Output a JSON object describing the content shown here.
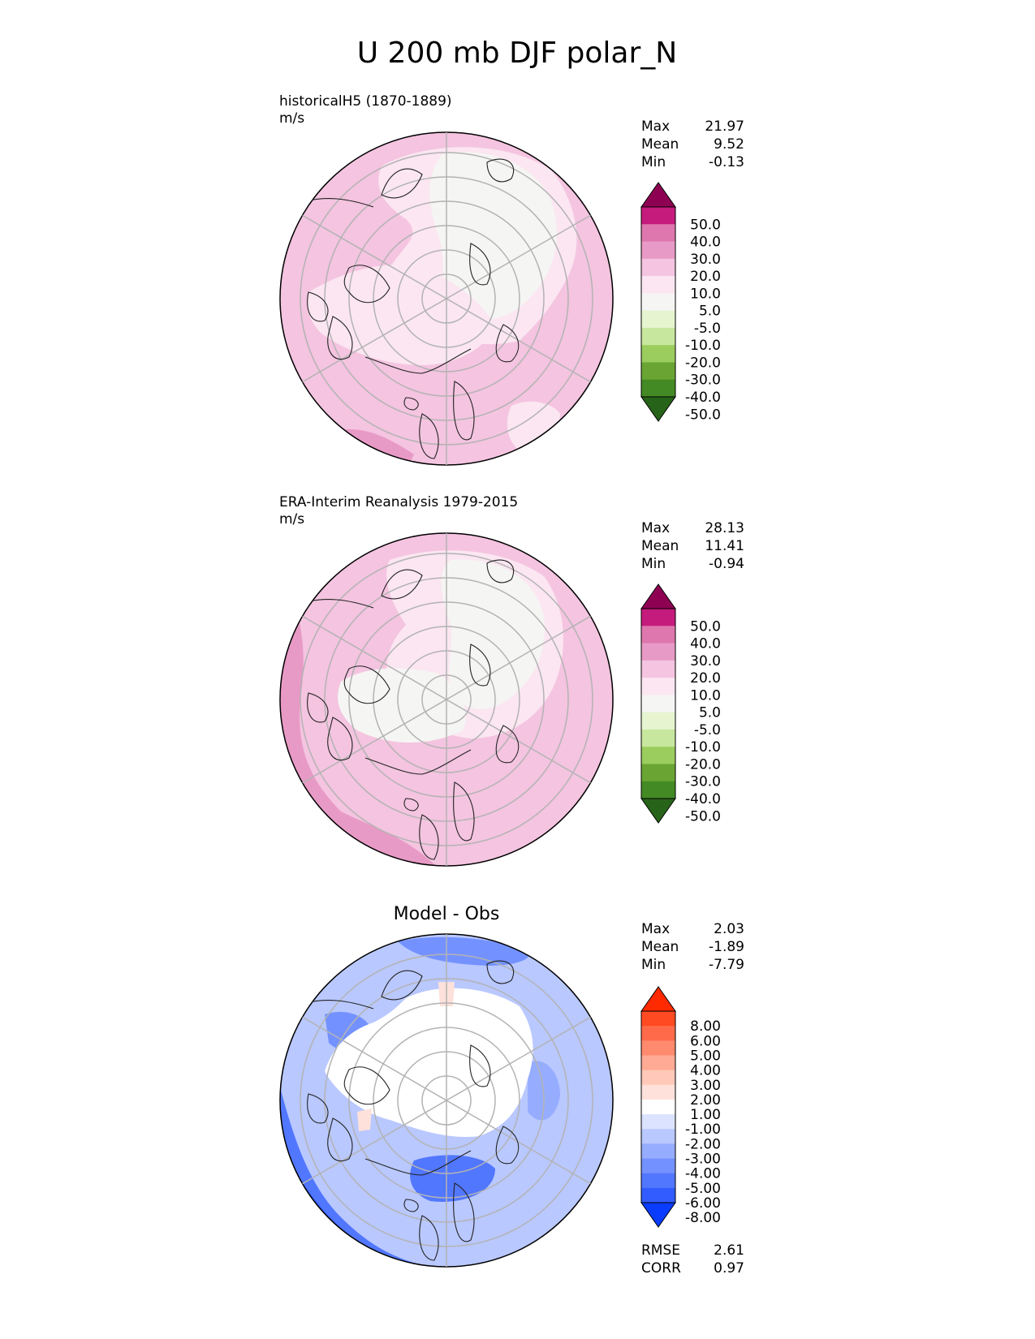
{
  "figure_title": "U 200 mb DJF polar_N",
  "panels": [
    {
      "title": "historicalH5 (1870-1889)",
      "units": "m/s",
      "stats": {
        "Max": "21.97",
        "Mean": "9.52",
        "Min": "-0.13"
      }
    },
    {
      "title": "ERA-Interim Reanalysis 1979-2015",
      "units": "m/s",
      "stats": {
        "Max": "28.13",
        "Mean": "11.41",
        "Min": "-0.94"
      }
    },
    {
      "title": "Model - Obs",
      "units": "",
      "stats": {
        "Max": "2.03",
        "Mean": "-1.89",
        "Min": "-7.79"
      },
      "metrics": {
        "RMSE": "2.61",
        "CORR": "0.97"
      }
    }
  ],
  "colorbars": {
    "field": {
      "labels": [
        "50.0",
        "40.0",
        "30.0",
        "20.0",
        "10.0",
        "5.0",
        "-5.0",
        "-10.0",
        "-20.0",
        "-30.0",
        "-40.0",
        "-50.0"
      ],
      "colors": [
        "#8e0152",
        "#c51b7d",
        "#de77ae",
        "#e89ac6",
        "#f4c4e0",
        "#fbe6f1",
        "#f5f5f3",
        "#e6f5d0",
        "#c8e79e",
        "#9bcd5e",
        "#6aa534",
        "#438a24",
        "#276419"
      ]
    },
    "diff": {
      "labels": [
        "8.00",
        "6.00",
        "5.00",
        "4.00",
        "3.00",
        "2.00",
        "1.00",
        "-1.00",
        "-2.00",
        "-3.00",
        "-4.00",
        "-5.00",
        "-6.00",
        "-8.00"
      ],
      "colors": [
        "#ff2a00",
        "#ff4a22",
        "#ff6b4a",
        "#ff8a6e",
        "#ffaa94",
        "#ffc8b8",
        "#fde1da",
        "#ffffff",
        "#dbe3ff",
        "#b9c8ff",
        "#96adff",
        "#7492ff",
        "#5277ff",
        "#325cff",
        "#0a3cff"
      ]
    }
  },
  "chart_data": [
    {
      "type": "heatmap",
      "title": "historicalH5 (1870-1889)",
      "units": "m/s",
      "projection": "north polar stereographic",
      "stats": {
        "max": 21.97,
        "mean": 9.52,
        "min": -0.13
      },
      "levels": [
        -50,
        -40,
        -30,
        -20,
        -10,
        -5,
        5,
        10,
        20,
        30,
        40,
        50
      ]
    },
    {
      "type": "heatmap",
      "title": "ERA-Interim Reanalysis 1979-2015",
      "units": "m/s",
      "projection": "north polar stereographic",
      "stats": {
        "max": 28.13,
        "mean": 11.41,
        "min": -0.94
      },
      "levels": [
        -50,
        -40,
        -30,
        -20,
        -10,
        -5,
        5,
        10,
        20,
        30,
        40,
        50
      ]
    },
    {
      "type": "heatmap",
      "title": "Model - Obs",
      "projection": "north polar stereographic",
      "stats": {
        "max": 2.03,
        "mean": -1.89,
        "min": -7.79
      },
      "rmse": 2.61,
      "corr": 0.97,
      "levels": [
        -8,
        -6,
        -5,
        -4,
        -3,
        -2,
        -1,
        1,
        2,
        3,
        4,
        5,
        6,
        8
      ]
    }
  ]
}
